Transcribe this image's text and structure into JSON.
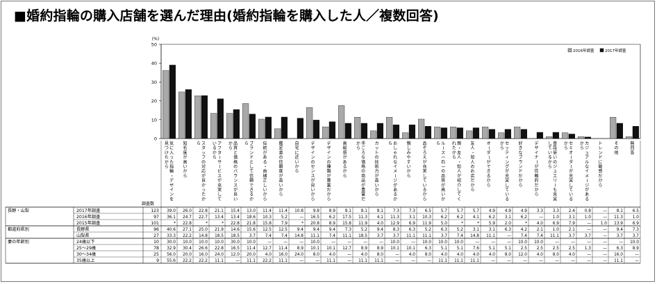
{
  "title": "■婚約指輪の購入店舗を選んだ理由(婚約指輪を購入した人／複数回答)",
  "unit": "(%)",
  "n_header": "調査数",
  "legend": [
    "2016年調査",
    "2017年調査"
  ],
  "chart_data": {
    "type": "bar",
    "title": "■婚約指輪の購入店舗を選んだ理由(婚約指輪を購入した人／複数回答)",
    "ylabel": "(%)",
    "ylim": [
      0,
      50
    ],
    "yticks": [
      0,
      10,
      20,
      30,
      40,
      50
    ],
    "legend_position": "top-right",
    "categories": [
      "気に入った指輪・デザインを見つけたから",
      "知名度が高いから",
      "スタッフの対応が良かったから",
      "アフターサービスが充実しているから",
      "品質と価格のバランスが良いから",
      "ブランドとして信頼できるから",
      "伝統がある・由緒正しいから",
      "鑑定書の信頼度が高いから",
      "自宅に近いから",
      "デザインのセンスが良いから",
      "デザインの種類が豊富だから",
      "高級感があるから",
      "手ごろな価格の商品が豊富だから",
      "カットの技術力が高いから",
      "おしゃれなイメージがあるから",
      "親しみやすいから",
      "品ぞろえが充実しているから",
      "ルース(石)の品質が高いから",
      "親・友人・知人が紹介してくれたから",
      "友人・知人のお店だから",
      "オーダーができるから",
      "セッティングが充実しているから",
      "好きなブランドだから",
      "デザイナーが信頼的だから",
      "普段使いのジュエリーも充実しているから",
      "セミオーダーが充実しているから",
      "カジュアルなイメージがあるから",
      "トレンドに敏感だから",
      "その他",
      "無回答"
    ],
    "series": [
      {
        "name": "2016年調査",
        "values": [
          36.1,
          24.7,
          22.7,
          13.4,
          13.4,
          18.6,
          10.3,
          5.2,
          null,
          16.5,
          6.2,
          17.5,
          11.3,
          4.1,
          11.3,
          3.1,
          10.3,
          6.2,
          6.2,
          4.1,
          6.2,
          3.1,
          6.2,
          null,
          1.0,
          3.1,
          1.0,
          null,
          11.3,
          1.0
        ]
      },
      {
        "name": "2017年調査",
        "values": [
          39.0,
          26.0,
          22.8,
          21.1,
          15.4,
          13.0,
          11.4,
          11.4,
          10.8,
          9.8,
          8.9,
          8.1,
          8.1,
          8.1,
          7.3,
          7.3,
          6.5,
          5.7,
          5.7,
          5.7,
          4.9,
          4.9,
          4.9,
          3.3,
          3.3,
          2.4,
          0.8,
          null,
          8.1,
          6.5
        ]
      }
    ]
  },
  "table": {
    "col_header_n": "調査数",
    "groups": [
      {
        "label": "長野・山梨",
        "rows": [
          {
            "label": "2017年調査",
            "n": "123",
            "values": [
              "39.0",
              "26.0",
              "22.8",
              "21.1",
              "15.4",
              "13.0",
              "11.4",
              "11.4",
              "10.8",
              "9.8",
              "8.9",
              "8.1",
              "8.1",
              "8.1",
              "7.3",
              "7.3",
              "6.5",
              "5.7",
              "5.7",
              "5.7",
              "4.9",
              "4.9",
              "4.9",
              "3.3",
              "3.3",
              "2.4",
              "0.8",
              "—",
              "8.1",
              "6.5"
            ]
          },
          {
            "label": "2016年調査",
            "n": "97",
            "values": [
              "36.1",
              "24.7",
              "22.7",
              "13.4",
              "13.4",
              "18.6",
              "10.3",
              "5.2",
              "—",
              "16.5",
              "6.2",
              "17.5",
              "11.3",
              "4.1",
              "11.3",
              "3.1",
              "10.3",
              "6.2",
              "6.2",
              "4.1",
              "6.2",
              "3.1",
              "6.2",
              "—",
              "1.0",
              "3.1",
              "1.0",
              "—",
              "11.3",
              "1.0"
            ]
          },
          {
            "label": "2015年調査",
            "n": "101",
            "values": [
              "*",
              "22.8",
              "*",
              "*",
              "22.8",
              "21.8",
              "15.8",
              "7.9",
              "*",
              "20.8",
              "8.9",
              "15.8",
              "11.9",
              "4.0",
              "12.9",
              "6.9",
              "11.9",
              "5.0",
              "*",
              "*",
              "5.9",
              "2.0",
              "*",
              "4.0",
              "6.9",
              "7.9",
              "—",
              "1.0",
              "13.9",
              "6.9"
            ]
          }
        ]
      },
      {
        "label": "都道府県別",
        "rows": [
          {
            "label": "長野県",
            "n": "96",
            "values": [
              "40.6",
              "27.1",
              "25.0",
              "21.9",
              "14.6",
              "15.6",
              "12.5",
              "12.5",
              "9.4",
              "9.4",
              "9.4",
              "7.3",
              "5.2",
              "9.4",
              "8.3",
              "6.3",
              "5.2",
              "6.3",
              "5.2",
              "3.1",
              "3.1",
              "6.3",
              "4.2",
              "2.1",
              "1.0",
              "2.1",
              "—",
              "—",
              "9.4",
              "7.3"
            ]
          },
          {
            "label": "山梨県",
            "n": "27",
            "values": [
              "33.3",
              "22.2",
              "14.8",
              "18.5",
              "18.5",
              "3.7",
              "7.4",
              "7.4",
              "14.8",
              "11.1",
              "7.4",
              "11.1",
              "18.5",
              "3.7",
              "3.7",
              "11.1",
              "11.1",
              "3.7",
              "7.4",
              "14.8",
              "11.1",
              "—",
              "7.4",
              "7.4",
              "11.1",
              "3.7",
              "3.7",
              "—",
              "3.7",
              "3.7"
            ]
          }
        ]
      },
      {
        "label": "妻の年齢別",
        "rows": [
          {
            "label": "24歳以下",
            "n": "10",
            "values": [
              "30.0",
              "10.0",
              "10.0",
              "10.0",
              "30.0",
              "10.0",
              "—",
              "—",
              "—",
              "10.0",
              "—",
              "—",
              "—",
              "—",
              "10.0",
              "—",
              "10.0",
              "10.0",
              "10.0",
              "—",
              "—",
              "—",
              "10.0",
              "10.0",
              "—",
              "—",
              "—",
              "—",
              "—",
              "10.0"
            ]
          },
          {
            "label": "25～29歳",
            "n": "78",
            "values": [
              "32.9",
              "30.4",
              "26.6",
              "22.8",
              "16.5",
              "11.4",
              "12.7",
              "11.4",
              "8.9",
              "10.1",
              "10.1",
              "12.7",
              "8.9",
              "8.9",
              "10.1",
              "10.1",
              "6.3",
              "5.1",
              "5.1",
              "7.6",
              "5.1",
              "5.1",
              "2.5",
              "2.5",
              "2.5",
              "2.5",
              "1.3",
              "—",
              "6.3",
              "8.9"
            ]
          },
          {
            "label": "30～34歳",
            "n": "25",
            "values": [
              "56.0",
              "20.0",
              "16.0",
              "24.0",
              "12.0",
              "20.0",
              "4.0",
              "16.0",
              "24.0",
              "8.0",
              "4.0",
              "—",
              "4.0",
              "8.0",
              "—",
              "4.0",
              "8.0",
              "4.0",
              "4.0",
              "4.0",
              "4.0",
              "8.0",
              "12.0",
              "4.0",
              "8.0",
              "4.0",
              "—",
              "—",
              "16.0",
              "—"
            ]
          },
          {
            "label": "35歳以上",
            "n": "9",
            "values": [
              "55.6",
              "22.2",
              "22.2",
              "11.1",
              "—",
              "11.1",
              "22.2",
              "11.1",
              "—",
              "—",
              "11.1",
              "—",
              "11.1",
              "11.1",
              "—",
              "—",
              "—",
              "11.1",
              "11.1",
              "11.1",
              "—",
              "—",
              "—",
              "—",
              "—",
              "—",
              "—",
              "—",
              "11.1",
              "—"
            ]
          }
        ]
      }
    ]
  }
}
